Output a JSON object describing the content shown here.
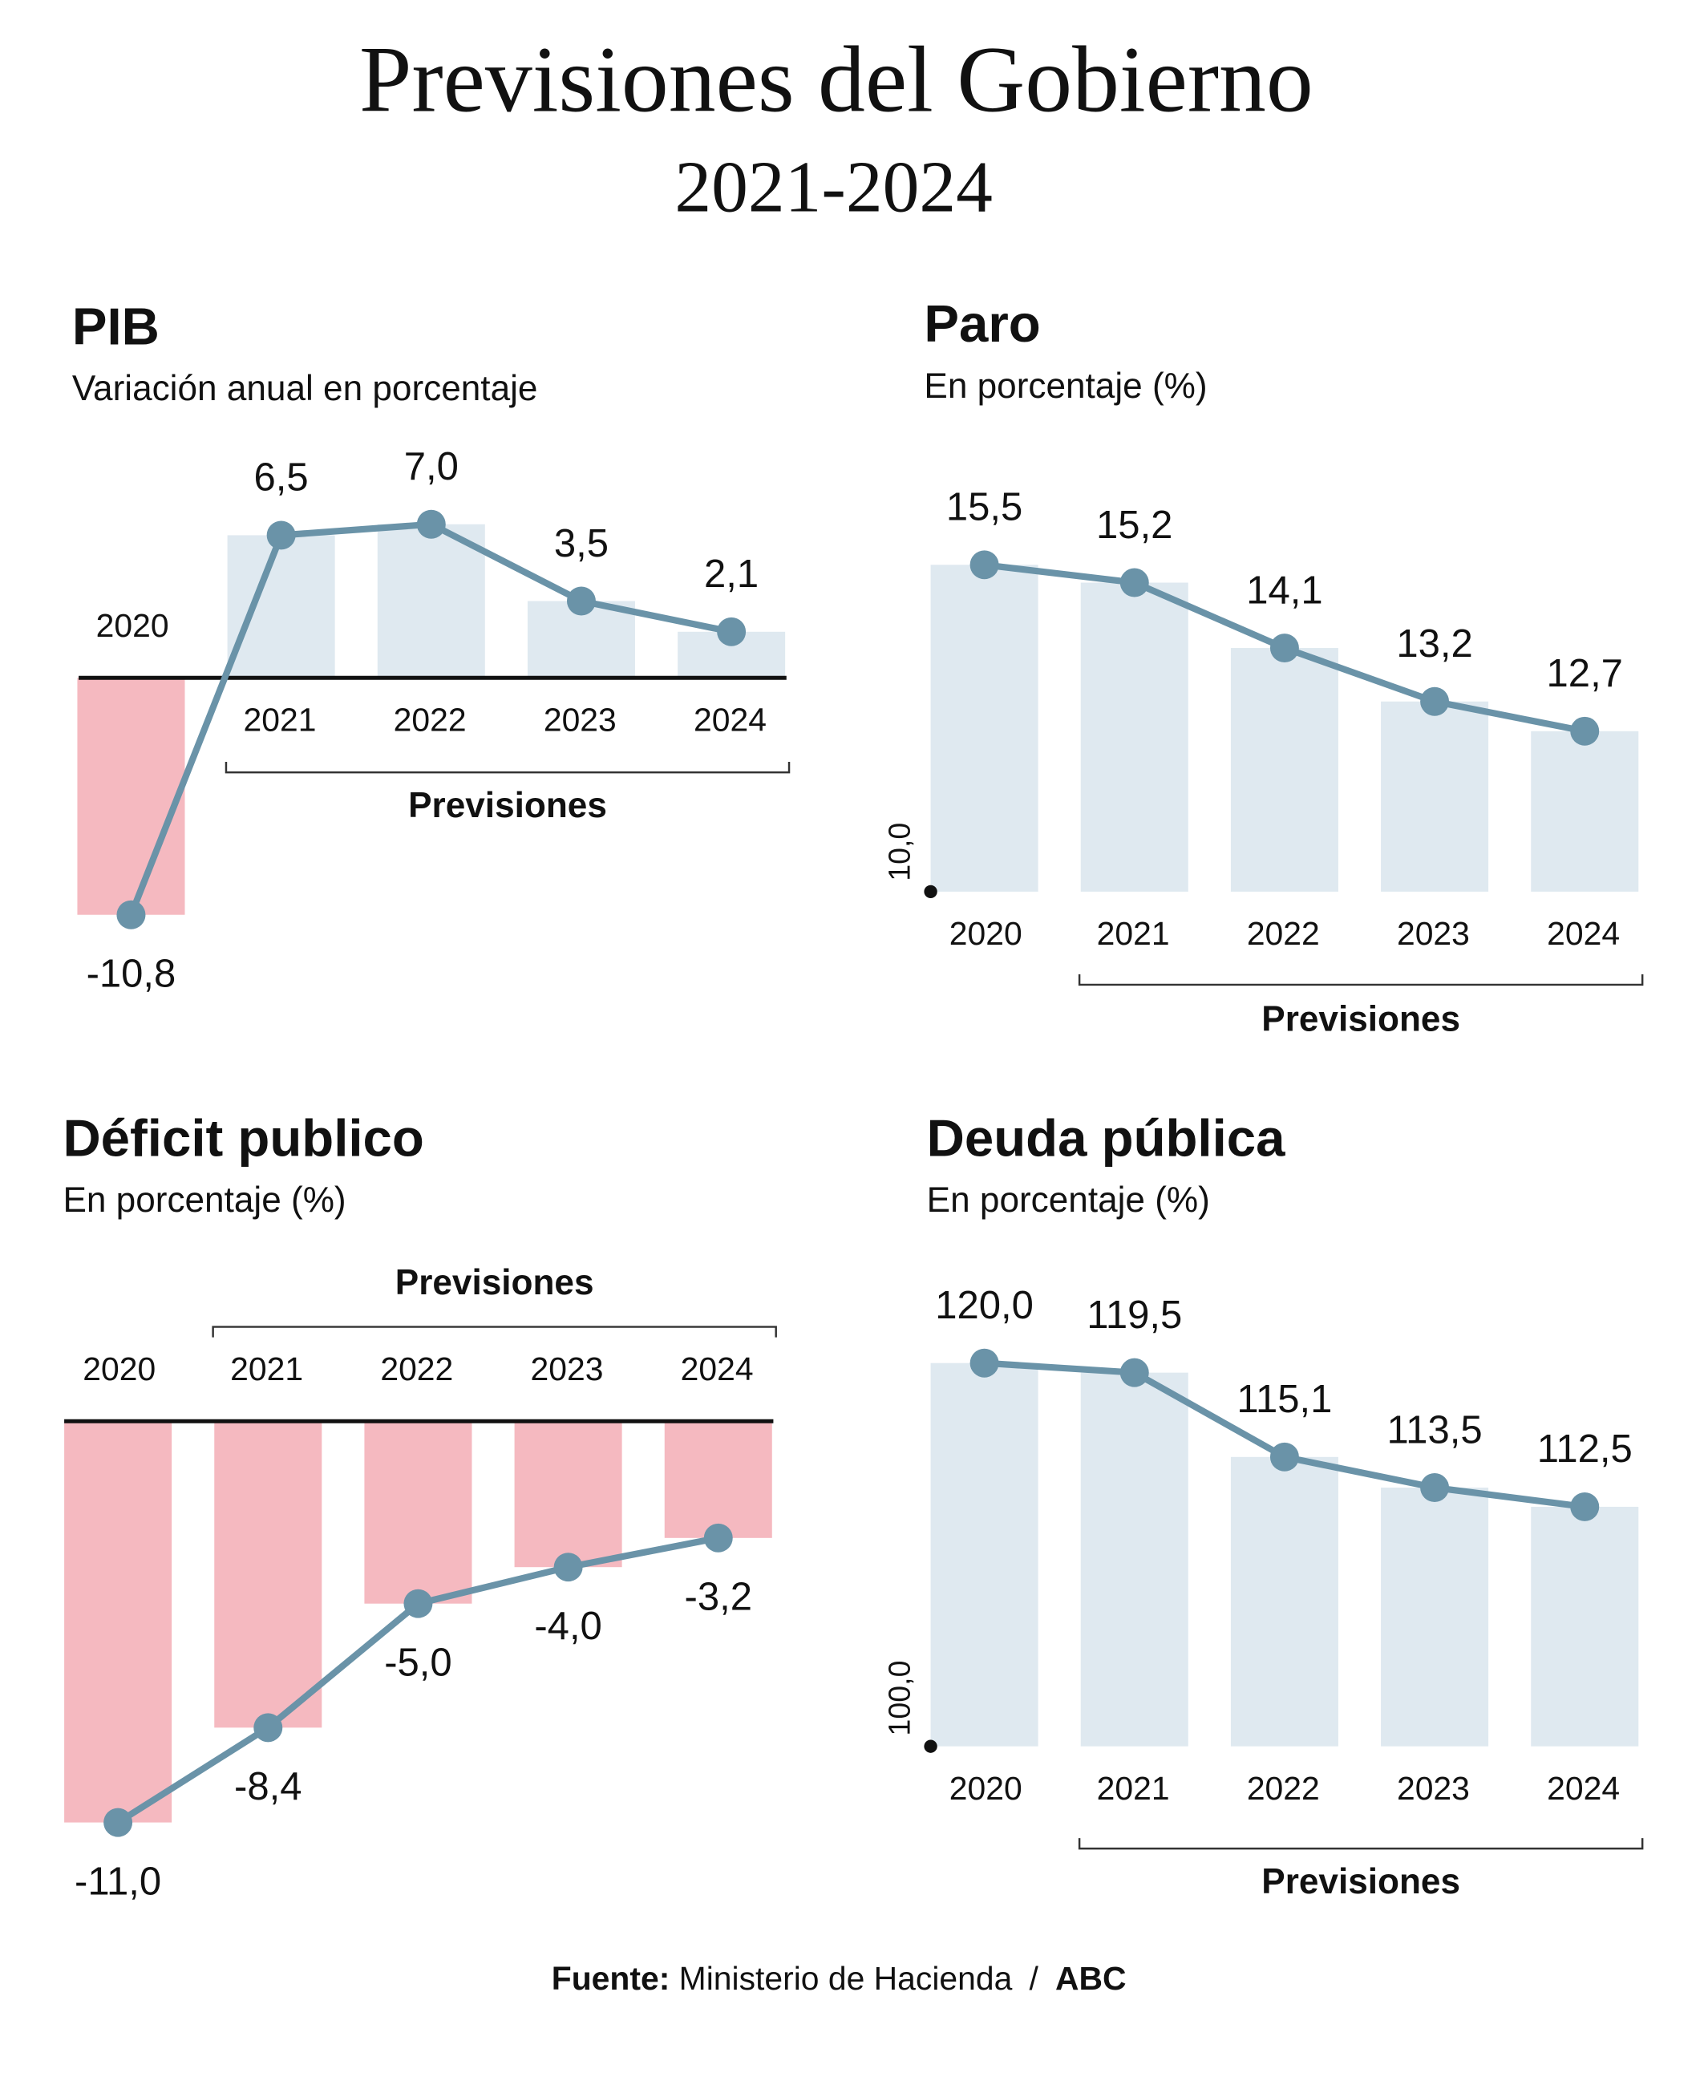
{
  "title": "Previsiones del Gobierno",
  "subtitle": "2021-2024",
  "source": {
    "label": "Fuente:",
    "name": "Ministerio de Hacienda",
    "separator": "/",
    "publisher": "ABC"
  },
  "chart_data": [
    {
      "type": "bar_line",
      "title": "PIB",
      "subtitle": "Variación anual en porcentaje",
      "categories": [
        "2020",
        "2021",
        "2022",
        "2023",
        "2024"
      ],
      "values": [
        -10.8,
        6.5,
        7.0,
        3.5,
        2.1
      ],
      "value_labels": [
        "-10,8",
        "6,5",
        "7,0",
        "3,5",
        "2,1"
      ],
      "ylim": [
        -11,
        8
      ],
      "annotation": "Previsiones",
      "bar_color": "#dfe9f0",
      "negative_color": "#f5b9c0",
      "line_color": "#6a93a8"
    },
    {
      "type": "bar_line",
      "title": "Paro",
      "subtitle": "En porcentaje (%)",
      "categories": [
        "2020",
        "2021",
        "2022",
        "2023",
        "2024"
      ],
      "values": [
        15.5,
        15.2,
        14.1,
        13.2,
        12.7
      ],
      "value_labels": [
        "15,5",
        "15,2",
        "14,1",
        "13,2",
        "12,7"
      ],
      "ylim": [
        10,
        16
      ],
      "yticks": [
        {
          "value": 10,
          "label": "10,0"
        }
      ],
      "annotation": "Previsiones",
      "bar_color": "#dfe9f0",
      "negative_color": "#f5b9c0",
      "line_color": "#6a93a8"
    },
    {
      "type": "bar_line",
      "title": "Déficit publico",
      "subtitle": "En porcentaje (%)",
      "categories": [
        "2020",
        "2021",
        "2022",
        "2023",
        "2024"
      ],
      "values": [
        -11.0,
        -8.4,
        -5.0,
        -4.0,
        -3.2
      ],
      "value_labels": [
        "-11,0",
        "-8,4",
        "-5,0",
        "-4,0",
        "-3,2"
      ],
      "ylim": [
        -11.5,
        0
      ],
      "annotation": "Previsiones",
      "bar_color": "#dfe9f0",
      "negative_color": "#f5b9c0",
      "line_color": "#6a93a8"
    },
    {
      "type": "bar_line",
      "title": "Deuda pública",
      "subtitle": "En porcentaje (%)",
      "categories": [
        "2020",
        "2021",
        "2022",
        "2023",
        "2024"
      ],
      "values": [
        120.0,
        119.5,
        115.1,
        113.5,
        112.5
      ],
      "value_labels": [
        "120,0",
        "119,5",
        "115,1",
        "113,5",
        "112,5"
      ],
      "ylim": [
        100,
        121
      ],
      "yticks": [
        {
          "value": 100,
          "label": "100,0"
        }
      ],
      "annotation": "Previsiones",
      "bar_color": "#dfe9f0",
      "negative_color": "#f5b9c0",
      "line_color": "#6a93a8"
    }
  ]
}
